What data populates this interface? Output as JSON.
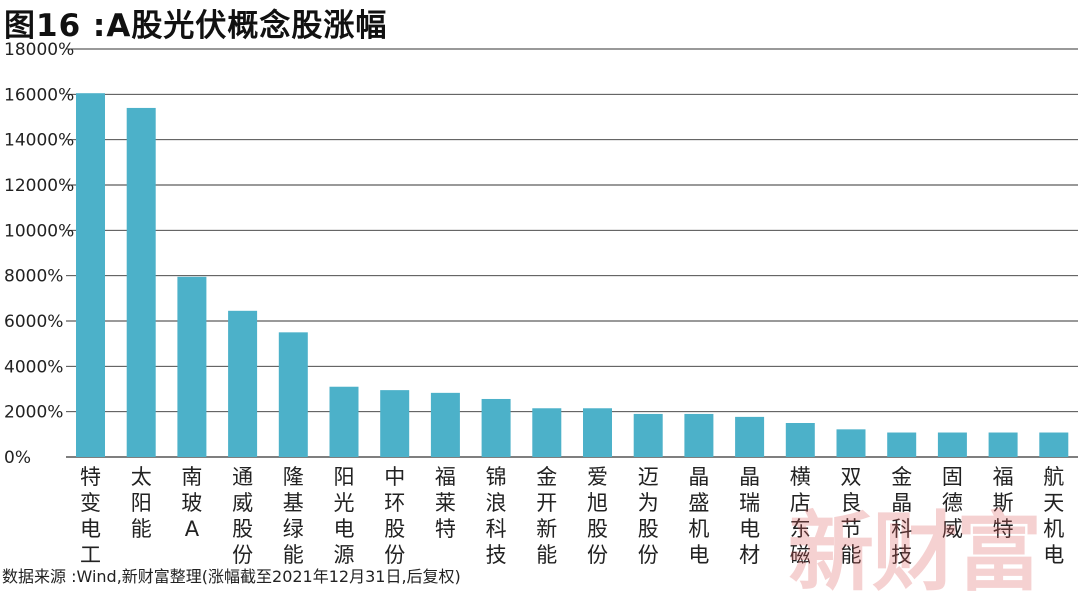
{
  "title": "图16 :A股光伏概念股涨幅",
  "source": "数据来源 :Wind,新财富整理(涨幅截至2021年12月31日,后复权)",
  "watermark": "新财富",
  "colors": {
    "bar": "#4cb1c9",
    "grid": "#333333",
    "watermark": "#dc5a5a"
  },
  "chart_data": {
    "type": "bar",
    "title": "图16 :A股光伏概念股涨幅",
    "xlabel": "",
    "ylabel": "",
    "ylim": [
      0,
      18000
    ],
    "yticks": [
      0,
      2000,
      4000,
      6000,
      8000,
      10000,
      12000,
      14000,
      16000,
      18000
    ],
    "ytick_labels": [
      "0%",
      "2000%",
      "4000%",
      "6000%",
      "8000%",
      "10000%",
      "12000%",
      "14000%",
      "16000%",
      "18000%"
    ],
    "grid": true,
    "categories": [
      "特变电工",
      "太阳能",
      "南玻A",
      "通威股份",
      "隆基绿能",
      "阳光电源",
      "中环股份",
      "福莱特",
      "锦浪科技",
      "金开新能",
      "爱旭股份",
      "迈为股份",
      "晶盛机电",
      "晶瑞电材",
      "横店东磁",
      "双良节能",
      "金晶科技",
      "固德威",
      "福斯特",
      "航天机电"
    ],
    "values": [
      16050,
      15400,
      7950,
      6450,
      5500,
      3100,
      2950,
      2830,
      2560,
      2150,
      2150,
      1900,
      1900,
      1770,
      1500,
      1220,
      1080,
      1080,
      1080,
      1080
    ],
    "unit": "%"
  }
}
